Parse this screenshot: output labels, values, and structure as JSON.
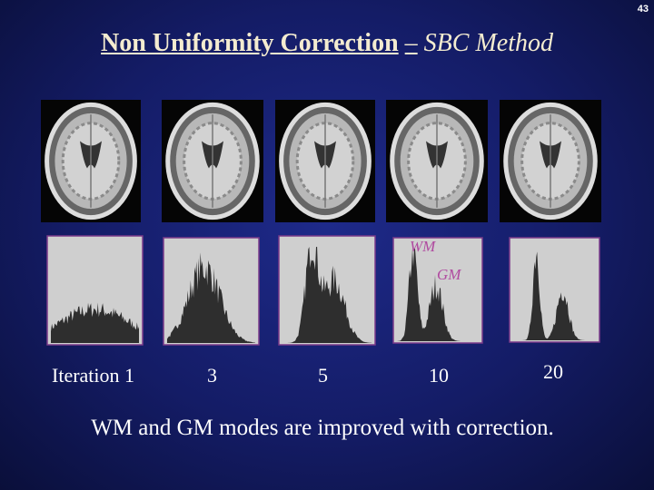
{
  "page_number": "43",
  "title": {
    "main": "Non Uniformity Correction",
    "separator": "–",
    "method": "SBC Method"
  },
  "annotations": {
    "wm": "WM",
    "gm": "GM"
  },
  "iterations": [
    "Iteration 1",
    "3",
    "5",
    "10",
    "20"
  ],
  "caption": "WM and GM modes are improved  with correction."
}
